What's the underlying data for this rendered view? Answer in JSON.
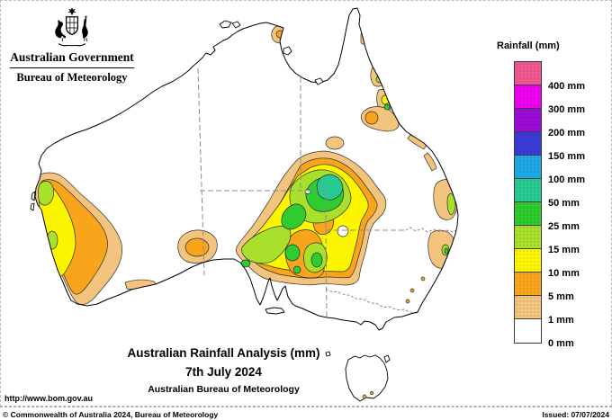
{
  "header": {
    "gov_title": "Australian Government",
    "agency": "Bureau of Meteorology"
  },
  "legend": {
    "title": "Rainfall (mm)",
    "entries": [
      {
        "label": "400 mm",
        "color": "#F1578F"
      },
      {
        "label": "300 mm",
        "color": "#F000F0"
      },
      {
        "label": "200 mm",
        "color": "#9B0DD6"
      },
      {
        "label": "150 mm",
        "color": "#3A3AD9"
      },
      {
        "label": "100 mm",
        "color": "#1FA8E6"
      },
      {
        "label": "50 mm",
        "color": "#29C993"
      },
      {
        "label": "25 mm",
        "color": "#2ECC2E"
      },
      {
        "label": "15 mm",
        "color": "#A8E02C"
      },
      {
        "label": "10 mm",
        "color": "#FCF500"
      },
      {
        "label": "5 mm",
        "color": "#F9A51C"
      },
      {
        "label": "1 mm",
        "color": "#F2C47E"
      },
      {
        "label": "0 mm",
        "color": "#FFFFFF"
      }
    ]
  },
  "palette": {
    "tan": "#F2C47E",
    "orange": "#F9A51C",
    "yellow": "#FCF500",
    "yg": "#A8E02C",
    "green": "#2ECC2E",
    "teal": "#29C993"
  },
  "captions": {
    "title": "Australian Rainfall Analysis (mm)",
    "date": "7th July 2024",
    "org": "Australian Bureau of Meteorology",
    "url": "http://www.bom.gov.au"
  },
  "footer": {
    "copyright": "© Commonwealth of Australia 2024, Bureau of Meteorology",
    "issued": "Issued: 07/07/2024"
  }
}
